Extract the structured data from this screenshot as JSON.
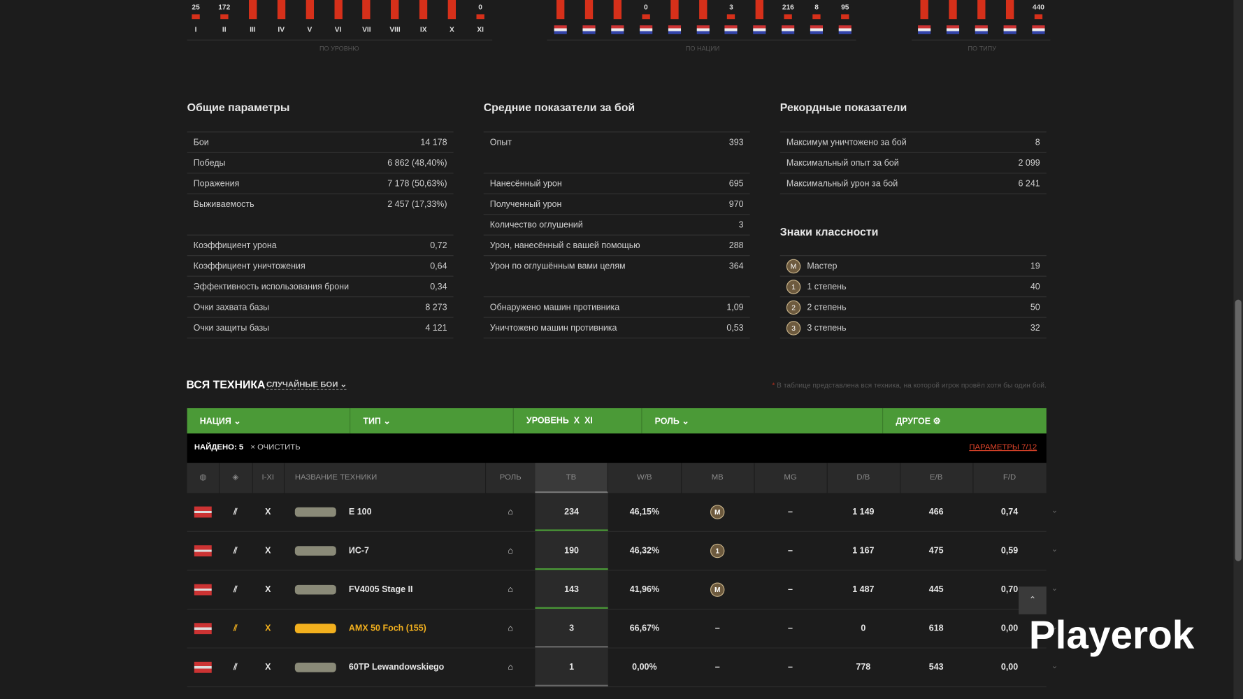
{
  "top": {
    "levels": {
      "labels": [
        "I",
        "II",
        "III",
        "IV",
        "V",
        "VI",
        "VII",
        "VIII",
        "IX",
        "X",
        "XI"
      ],
      "counts": [
        "25",
        "172",
        null,
        null,
        null,
        null,
        null,
        null,
        null,
        null,
        "0"
      ],
      "caption": "ПО УРОВНЮ"
    },
    "nations": {
      "counts": [
        null,
        null,
        null,
        "0",
        null,
        null,
        "3",
        null,
        "216",
        "8",
        "95"
      ],
      "caption": "ПО НАЦИИ"
    },
    "types": {
      "counts": [
        null,
        null,
        null,
        null,
        "440"
      ],
      "caption": "ПО ТИПУ"
    }
  },
  "general": {
    "title": "Общие параметры",
    "groups": [
      [
        [
          "Бои",
          "14 178"
        ],
        [
          "Победы",
          "6 862 (48,40%)"
        ],
        [
          "Поражения",
          "7 178 (50,63%)"
        ],
        [
          "Выживаемость",
          "2 457 (17,33%)"
        ]
      ],
      [
        [
          "Коэффициент урона",
          "0,72"
        ],
        [
          "Коэффициент уничтожения",
          "0,64"
        ],
        [
          "Эффективность использования брони",
          "0,34"
        ],
        [
          "Очки захвата базы",
          "8 273"
        ],
        [
          "Очки защиты базы",
          "4 121"
        ]
      ]
    ]
  },
  "average": {
    "title": "Средние показатели за бой",
    "groups": [
      [
        [
          "Опыт",
          "393"
        ]
      ],
      [
        [
          "Нанесённый урон",
          "695"
        ],
        [
          "Полученный урон",
          "970"
        ],
        [
          "Количество оглушений",
          "3"
        ],
        [
          "Урон, нанесённый с вашей помощью",
          "288"
        ],
        [
          "Урон по оглушённым вами целям",
          "364"
        ]
      ],
      [
        [
          "Обнаружено машин противника",
          "1,09"
        ],
        [
          "Уничтожено машин противника",
          "0,53"
        ]
      ]
    ]
  },
  "records": {
    "title": "Рекордные показатели",
    "groups": [
      [
        [
          "Максимум уничтожено за бой",
          "8"
        ],
        [
          "Максимальный опыт за бой",
          "2 099"
        ],
        [
          "Максимальный урон за бой",
          "6 241"
        ]
      ]
    ]
  },
  "marks": {
    "title": "Знаки классности",
    "rows": [
      {
        "badge": "M",
        "label": "Мастер",
        "value": "19"
      },
      {
        "badge": "1",
        "label": "1 степень",
        "value": "40"
      },
      {
        "badge": "2",
        "label": "2 степень",
        "value": "50"
      },
      {
        "badge": "3",
        "label": "3 степень",
        "value": "32"
      }
    ]
  },
  "vehicles": {
    "title": "ВСЯ ТЕХНИКА",
    "mode": "СЛУЧАЙНЫЕ БОИ",
    "note": "В таблице представлена вся техника, на которой игрок провёл хотя бы один бой.",
    "filters": {
      "nation": "НАЦИЯ",
      "type": "ТИП",
      "level": "УРОВЕНЬ",
      "level_a": "X",
      "level_b": "XI",
      "role": "РОЛЬ",
      "other": "ДРУГОЕ"
    },
    "found": "НАЙДЕНО: 5",
    "clear": "ОЧИСТИТЬ",
    "params": "ПАРАМЕТРЫ 7/12",
    "headers": {
      "tier": "I-XI",
      "name": "НАЗВАНИЕ ТЕХНИКИ",
      "role": "РОЛЬ",
      "tv": "ТВ",
      "wb": "W/B",
      "mb": "MB",
      "mg": "MG",
      "db": "D/B",
      "eb": "E/B",
      "fd": "F/D"
    },
    "rows": [
      {
        "tier": "X",
        "name": "E 100",
        "tv": "234",
        "wb": "46,15%",
        "mb": "M",
        "mg": "–",
        "db": "1 149",
        "eb": "466",
        "fd": "0,74"
      },
      {
        "tier": "X",
        "name": "ИС-7",
        "tv": "190",
        "wb": "46,32%",
        "mb": "1",
        "mg": "–",
        "db": "1 167",
        "eb": "475",
        "fd": "0,59"
      },
      {
        "tier": "X",
        "name": "FV4005 Stage II",
        "tv": "143",
        "wb": "41,96%",
        "mb": "M",
        "mg": "–",
        "db": "1 487",
        "eb": "445",
        "fd": "0,70"
      },
      {
        "tier": "X",
        "name": "AMX 50 Foch (155)",
        "tv": "3",
        "wb": "66,67%",
        "mb": "–",
        "mg": "–",
        "db": "0",
        "eb": "618",
        "fd": "0,00",
        "color": "#f2b01e"
      },
      {
        "tier": "X",
        "name": "60TP Lewandowskiego",
        "tv": "1",
        "wb": "0,00%",
        "mb": "–",
        "mg": "–",
        "db": "778",
        "eb": "543",
        "fd": "0,00"
      }
    ]
  },
  "watermark": "Playerok"
}
